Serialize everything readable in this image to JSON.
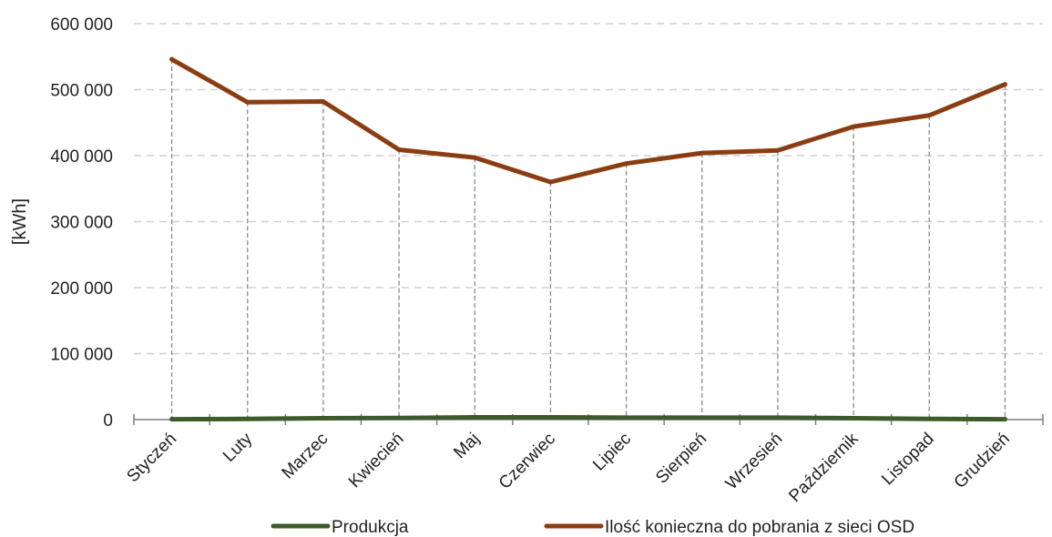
{
  "chart_data": {
    "type": "line",
    "categories": [
      "Styczeń",
      "Luty",
      "Marzec",
      "Kwiecień",
      "Maj",
      "Czerwiec",
      "Lipiec",
      "Sierpień",
      "Wrzesień",
      "Październik",
      "Listopad",
      "Grudzień"
    ],
    "series": [
      {
        "name": "Produkcja",
        "color": "#3d5a2a",
        "values": [
          500,
          1000,
          2000,
          2500,
          3500,
          3500,
          3000,
          3000,
          3000,
          2000,
          1000,
          500
        ]
      },
      {
        "name": "Ilość konieczna do pobrania z sieci OSD",
        "color": "#8b3d12",
        "values": [
          546000,
          481000,
          482000,
          409000,
          397000,
          360000,
          388000,
          404000,
          408000,
          444000,
          461000,
          508000
        ]
      }
    ],
    "ylabel": "[kWh]",
    "ylim": [
      0,
      600000
    ],
    "yticks": [
      0,
      100000,
      200000,
      300000,
      400000,
      500000,
      600000
    ],
    "ytick_labels": [
      "0",
      "100 000",
      "200 000",
      "300 000",
      "400 000",
      "500 000",
      "600 000"
    ],
    "grid": true,
    "drop_lines": true,
    "legend_position": "bottom"
  }
}
